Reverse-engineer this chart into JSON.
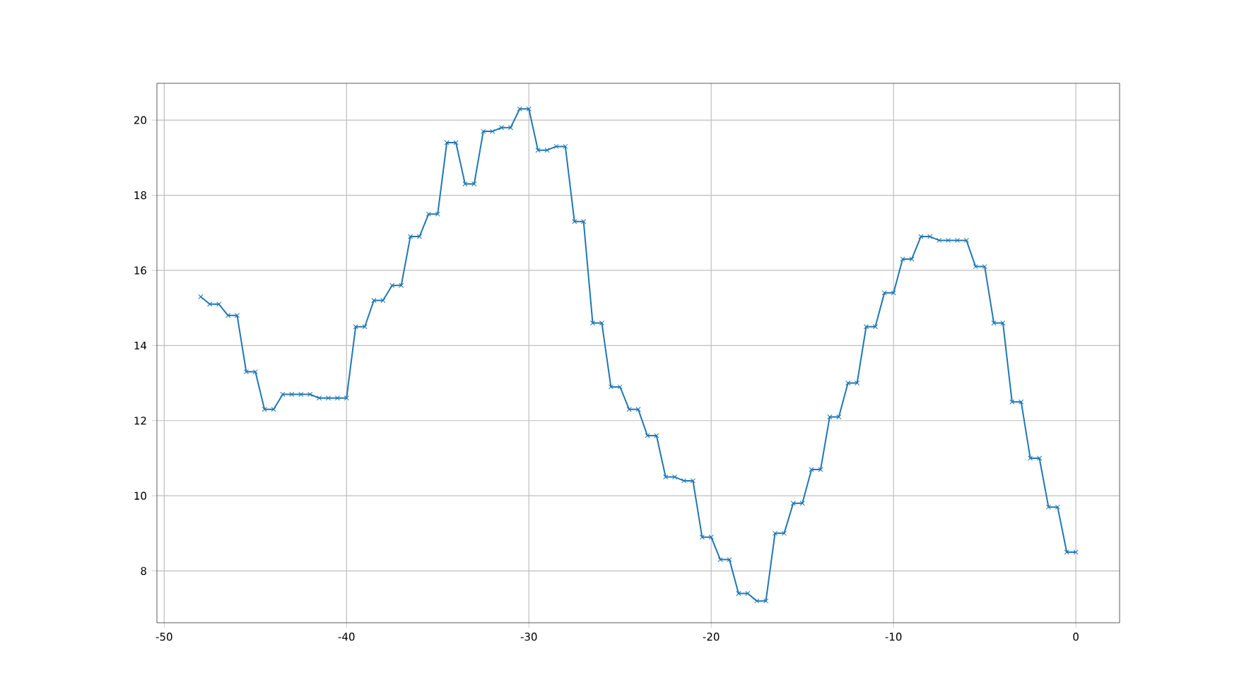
{
  "chart_data": {
    "type": "line",
    "x": [
      -48,
      -47.5,
      -47,
      -46.5,
      -46,
      -45.5,
      -45,
      -44.5,
      -44,
      -43.5,
      -43,
      -42.5,
      -42,
      -41.5,
      -41,
      -40.5,
      -40,
      -39.5,
      -39,
      -38.5,
      -38,
      -37.5,
      -37,
      -36.5,
      -36,
      -35.5,
      -35,
      -34.5,
      -34,
      -33.5,
      -33,
      -32.5,
      -32,
      -31.5,
      -31,
      -30.5,
      -30,
      -29.5,
      -29,
      -28.5,
      -28,
      -27.5,
      -27,
      -26.5,
      -26,
      -25.5,
      -25,
      -24.5,
      -24,
      -23.5,
      -23,
      -22.5,
      -22,
      -21.5,
      -21,
      -20.5,
      -20,
      -19.5,
      -19,
      -18.5,
      -18,
      -17.5,
      -17,
      -16.5,
      -16,
      -15.5,
      -15,
      -14.5,
      -14,
      -13.5,
      -13,
      -12.5,
      -12,
      -11.5,
      -11,
      -10.5,
      -10,
      -9.5,
      -9,
      -8.5,
      -8,
      -7.5,
      -7,
      -6.5,
      -6,
      -5.5,
      -5,
      -4.5,
      -4,
      -3.5,
      -3,
      -2.5,
      -2,
      -1.5,
      -1,
      -0.5,
      0
    ],
    "series": [
      {
        "color": "#1f77b4",
        "values": [
          15.3,
          15.1,
          15.1,
          14.8,
          14.8,
          13.3,
          13.3,
          12.3,
          12.3,
          12.7,
          12.7,
          12.7,
          12.7,
          12.6,
          12.6,
          12.6,
          12.6,
          14.5,
          14.5,
          15.2,
          15.2,
          15.6,
          15.6,
          16.9,
          16.9,
          17.5,
          17.5,
          19.4,
          19.4,
          18.3,
          18.3,
          19.7,
          19.7,
          19.8,
          19.8,
          20.3,
          20.3,
          19.2,
          19.2,
          19.3,
          19.3,
          17.3,
          17.3,
          14.6,
          14.6,
          12.9,
          12.9,
          12.3,
          12.3,
          11.6,
          11.6,
          10.5,
          10.5,
          10.4,
          10.4,
          8.9,
          8.9,
          8.3,
          8.3,
          7.4,
          7.4,
          7.2,
          7.2,
          9.0,
          9.0,
          9.8,
          9.8,
          10.7,
          10.7,
          12.1,
          12.1,
          13.0,
          13.0,
          14.5,
          14.5,
          15.4,
          15.4,
          16.3,
          16.3,
          16.9,
          16.9,
          16.8,
          16.8,
          16.8,
          16.8,
          16.1,
          16.1,
          14.6,
          14.6,
          12.5,
          12.5,
          11.0,
          11.0,
          9.7,
          9.7,
          8.5,
          8.5
        ]
      }
    ],
    "xlim": [
      -50.4,
      2.4
    ],
    "ylim": [
      6.62,
      20.98
    ],
    "xticks": [
      -50,
      -40,
      -30,
      -20,
      -10,
      0
    ],
    "yticks": [
      8,
      10,
      12,
      14,
      16,
      18,
      20
    ],
    "grid": true,
    "marker": "cross",
    "line_style": "solid"
  }
}
